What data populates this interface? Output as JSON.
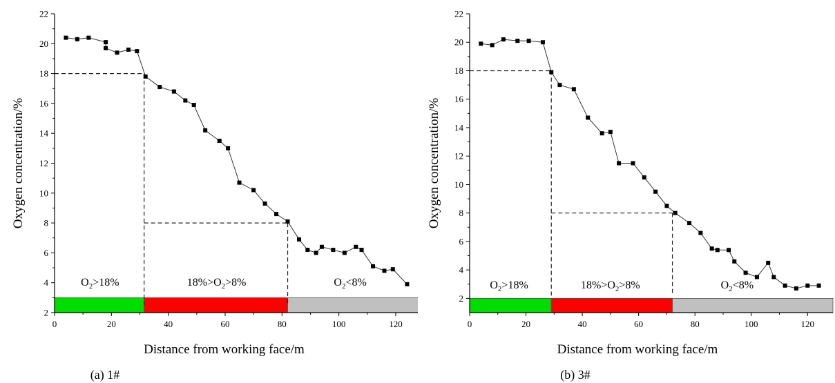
{
  "chart_data": [
    {
      "type": "line",
      "caption": "(a) 1#",
      "xlabel": "Distance from working face/m",
      "ylabel": "Oxygen concentration/%",
      "xlim": [
        0,
        129
      ],
      "ylim": [
        2,
        22
      ],
      "xticks": [
        0,
        20,
        40,
        60,
        80,
        100,
        120
      ],
      "yticks": [
        2,
        4,
        6,
        8,
        10,
        12,
        14,
        16,
        18,
        20,
        22
      ],
      "grid": false,
      "series": [
        {
          "x": [
            4,
            8,
            12,
            18,
            18,
            22,
            26,
            29,
            32,
            37,
            42,
            46,
            49,
            53,
            58,
            61,
            65,
            70,
            74,
            78,
            82,
            86,
            89,
            92,
            94,
            98,
            102,
            106,
            108,
            112,
            116,
            119,
            124
          ],
          "y": [
            20.4,
            20.3,
            20.4,
            20.1,
            19.7,
            19.4,
            19.6,
            19.5,
            17.8,
            17.1,
            16.8,
            16.2,
            15.9,
            14.2,
            13.5,
            13.0,
            10.7,
            10.2,
            9.3,
            8.6,
            8.1,
            6.9,
            6.2,
            6.0,
            6.4,
            6.2,
            6.0,
            6.4,
            6.2,
            5.1,
            4.8,
            4.9,
            3.9
          ]
        }
      ],
      "reference_lines": [
        {
          "from": [
            0,
            18
          ],
          "to": [
            31.5,
            18
          ]
        },
        {
          "from": [
            31.5,
            18
          ],
          "to": [
            31.5,
            2.5
          ]
        },
        {
          "from": [
            31.5,
            8
          ],
          "to": [
            82,
            8
          ]
        },
        {
          "from": [
            82,
            8
          ],
          "to": [
            82,
            2.5
          ]
        }
      ],
      "zones": [
        {
          "x0": 0,
          "x1": 31.5,
          "color": "#00dd00",
          "label_pre": "O",
          "label_sub": "2",
          "label_post": ">18%",
          "label_x": 16,
          "label_y": 3.8
        },
        {
          "x0": 31.5,
          "x1": 82,
          "color": "#ff0000",
          "label_pre": "18%>O",
          "label_sub": "2",
          "label_post": ">8%",
          "label_x": 57,
          "label_y": 3.8
        },
        {
          "x0": 82,
          "x1": 129,
          "color": "#c0c0c0",
          "label_pre": "O",
          "label_sub": "2",
          "label_post": "<8%",
          "label_x": 104,
          "label_y": 3.8
        }
      ]
    },
    {
      "type": "line",
      "caption": "(b) 3#",
      "xlabel": "Distance from working face/m",
      "ylabel": "Oxygen concentration/%",
      "xlim": [
        0,
        129
      ],
      "ylim": [
        1,
        22
      ],
      "xticks": [
        0,
        20,
        40,
        60,
        80,
        100,
        120
      ],
      "yticks": [
        2,
        4,
        6,
        8,
        10,
        12,
        14,
        16,
        18,
        20,
        22
      ],
      "grid": false,
      "series": [
        {
          "x": [
            4,
            8,
            12,
            17,
            21,
            26,
            29,
            32,
            37,
            42,
            47,
            50,
            53,
            58,
            62,
            66,
            70,
            73,
            78,
            82,
            86,
            88,
            92,
            94,
            98,
            102,
            106,
            108,
            112,
            116,
            120,
            124
          ],
          "y": [
            19.9,
            19.8,
            20.2,
            20.1,
            20.1,
            20.0,
            17.9,
            17.0,
            16.7,
            14.7,
            13.6,
            13.7,
            11.5,
            11.5,
            10.5,
            9.5,
            8.5,
            8.0,
            7.3,
            6.6,
            5.5,
            5.4,
            5.4,
            4.6,
            3.8,
            3.5,
            4.5,
            3.5,
            2.9,
            2.7,
            2.9,
            2.9
          ]
        }
      ],
      "reference_lines": [
        {
          "from": [
            0,
            18
          ],
          "to": [
            29,
            18
          ]
        },
        {
          "from": [
            29,
            18
          ],
          "to": [
            29,
            2.2
          ]
        },
        {
          "from": [
            29,
            8
          ],
          "to": [
            72,
            8
          ]
        },
        {
          "from": [
            72,
            8
          ],
          "to": [
            72,
            2.2
          ]
        }
      ],
      "zones": [
        {
          "x0": 0,
          "x1": 29,
          "color": "#00dd00",
          "label_pre": "O",
          "label_sub": "2",
          "label_post": ">18%",
          "label_x": 14,
          "label_y": 2.7
        },
        {
          "x0": 29,
          "x1": 72,
          "color": "#ff0000",
          "label_pre": "18%>O",
          "label_sub": "2",
          "label_post": ">8%",
          "label_x": 50,
          "label_y": 2.7
        },
        {
          "x0": 72,
          "x1": 129,
          "color": "#c0c0c0",
          "label_pre": "O",
          "label_sub": "2",
          "label_post": "<8%",
          "label_x": 95,
          "label_y": 2.7
        }
      ]
    }
  ]
}
